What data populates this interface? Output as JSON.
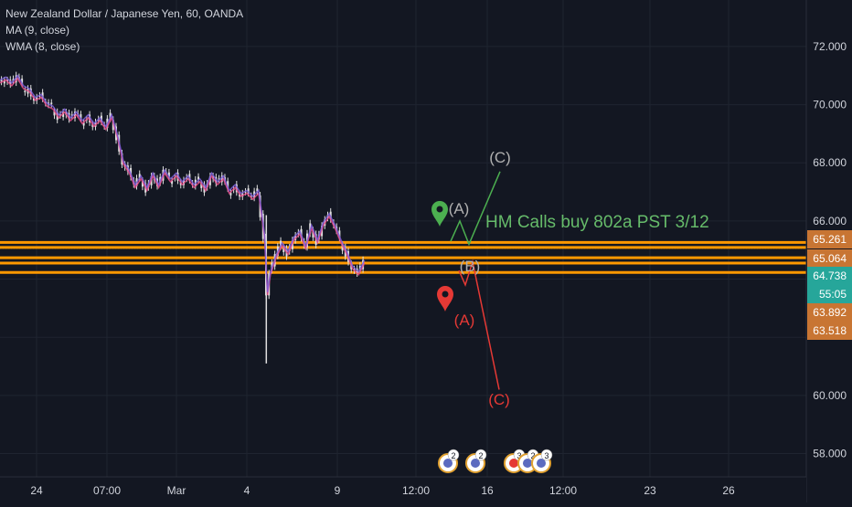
{
  "legend": {
    "symbol": "New Zealand Dollar / Japanese Yen, 60, OANDA",
    "ma": "MA (9, close)",
    "wma": "WMA (8, close)"
  },
  "colors": {
    "background": "#131722",
    "grid": "#1f2430",
    "axis_text": "#d1d4dc",
    "candle": "#e0e0e0",
    "ma_line": "#e64a8a",
    "wma_line": "#7b5cd6",
    "level_line": "#ff9800",
    "level_badge": "#c87533",
    "price_badge": "#26a69a",
    "bull_wave": "#4caf50",
    "bear_wave": "#e53935",
    "annotation_text": "#66bb6a"
  },
  "chart_data": {
    "type": "candlestick",
    "title": "New Zealand Dollar / Japanese Yen, 60, OANDA",
    "ylim": [
      57.2,
      73.6
    ],
    "y_ticks": [
      58.0,
      60.0,
      62.0,
      64.0,
      66.0,
      68.0,
      70.0,
      72.0
    ],
    "y_tick_labels": [
      "58.000",
      "60.000",
      "",
      "",
      "66.000",
      "68.000",
      "70.000",
      "72.000"
    ],
    "x_ticks": [
      {
        "label": "24",
        "index": 0
      },
      {
        "label": "07:00",
        "index": 1
      },
      {
        "label": "Mar",
        "index": 2
      },
      {
        "label": "4",
        "index": 3
      },
      {
        "label": "9",
        "index": 4
      },
      {
        "label": "12:00",
        "index": 5
      },
      {
        "label": "16",
        "index": 6
      },
      {
        "label": "12:00",
        "index": 7
      },
      {
        "label": "23",
        "index": 8
      },
      {
        "label": "26",
        "index": 9
      }
    ],
    "grid": true,
    "price_path": [
      [
        0,
        70.8
      ],
      [
        2,
        70.9
      ],
      [
        4,
        70.7
      ],
      [
        6,
        70.95
      ],
      [
        8,
        70.6
      ],
      [
        10,
        70.5
      ],
      [
        12,
        70.2
      ],
      [
        14,
        70.3
      ],
      [
        16,
        70.0
      ],
      [
        18,
        69.9
      ],
      [
        20,
        69.6
      ],
      [
        22,
        69.8
      ],
      [
        24,
        69.5
      ],
      [
        26,
        69.7
      ],
      [
        28,
        69.4
      ],
      [
        30,
        69.6
      ],
      [
        32,
        69.3
      ],
      [
        34,
        69.5
      ],
      [
        36,
        69.2
      ],
      [
        38,
        69.6
      ],
      [
        40,
        68.9
      ],
      [
        42,
        68.0
      ],
      [
        44,
        67.7
      ],
      [
        46,
        67.2
      ],
      [
        48,
        67.5
      ],
      [
        50,
        67.1
      ],
      [
        52,
        67.6
      ],
      [
        54,
        67.2
      ],
      [
        56,
        67.7
      ],
      [
        58,
        67.4
      ],
      [
        60,
        67.6
      ],
      [
        62,
        67.3
      ],
      [
        64,
        67.5
      ],
      [
        66,
        67.2
      ],
      [
        68,
        67.4
      ],
      [
        70,
        67.1
      ],
      [
        72,
        67.6
      ],
      [
        74,
        67.3
      ],
      [
        76,
        67.5
      ],
      [
        78,
        67.0
      ],
      [
        80,
        67.2
      ],
      [
        82,
        66.9
      ],
      [
        84,
        67.0
      ],
      [
        86,
        66.8
      ],
      [
        88,
        67.0
      ],
      [
        90,
        65.5
      ],
      [
        91,
        63.5
      ],
      [
        92,
        64.2
      ],
      [
        94,
        64.8
      ],
      [
        96,
        65.2
      ],
      [
        98,
        64.9
      ],
      [
        100,
        65.4
      ],
      [
        102,
        65.6
      ],
      [
        104,
        65.1
      ],
      [
        106,
        65.8
      ],
      [
        108,
        65.3
      ],
      [
        110,
        65.9
      ],
      [
        112,
        66.2
      ],
      [
        114,
        65.8
      ],
      [
        116,
        65.3
      ],
      [
        118,
        64.9
      ],
      [
        120,
        64.4
      ],
      [
        122,
        64.2
      ],
      [
        124,
        64.6
      ]
    ],
    "horizontal_levels": [
      65.261,
      65.064,
      64.738,
      63.892,
      63.518
    ],
    "level_badges": [
      {
        "label": "65.261",
        "value": 65.261,
        "style": "level"
      },
      {
        "label": "65.064",
        "value": 65.064,
        "style": "level"
      },
      {
        "label": "64.738",
        "value": 64.738,
        "style": "price"
      },
      {
        "label": "55:05",
        "value": 64.35,
        "style": "price"
      },
      {
        "label": "63.892",
        "value": 63.892,
        "style": "level"
      },
      {
        "label": "63.518",
        "value": 63.518,
        "style": "level"
      }
    ],
    "bull_wave": {
      "points": [
        [
          124,
          65.3
        ],
        [
          130,
          66.0
        ],
        [
          134,
          65.2
        ],
        [
          142,
          67.7
        ]
      ],
      "labels": [
        {
          "text": "(A)",
          "at": 1
        },
        {
          "text": "(B)",
          "at": 2
        },
        {
          "text": "(C)",
          "at": 3
        }
      ]
    },
    "bear_wave": {
      "points": [
        [
          128,
          64.3
        ],
        [
          131,
          63.8
        ],
        [
          134,
          64.6
        ],
        [
          141,
          60.2
        ]
      ],
      "labels": [
        {
          "text": "(A)",
          "at": 0
        },
        {
          "text": "(C)",
          "at": 3
        }
      ]
    },
    "annotation": "HM Calls buy 802a PST 3/12",
    "event_badges": [
      "2",
      "2",
      "3",
      "2",
      "3"
    ]
  }
}
